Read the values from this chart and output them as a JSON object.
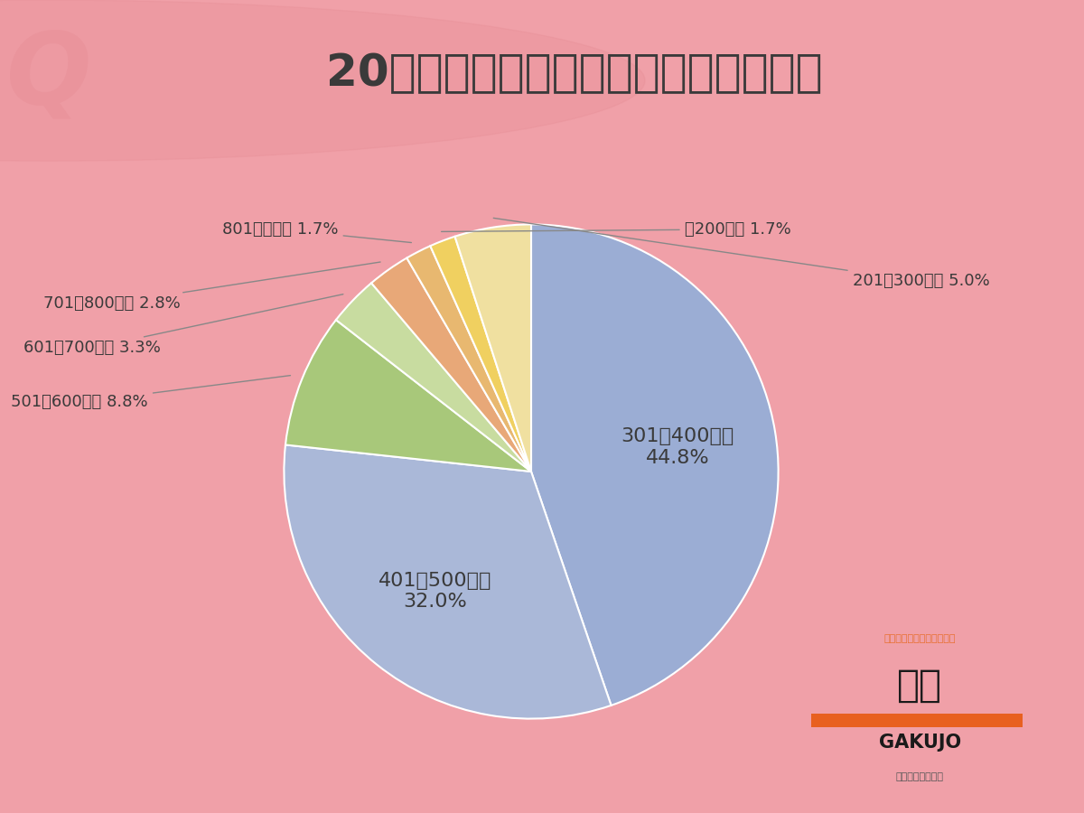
{
  "title": "20代の年収として、理想だと思う年収",
  "title_fontsize": 36,
  "title_color": "#3a3a3a",
  "background_outer": "#f0a0a8",
  "background_inner": "#ffffff",
  "slices": [
    {
      "label": "301～400万円",
      "value": 44.8,
      "color": "#9badd4",
      "label_inside": true
    },
    {
      "label": "401～500万円",
      "value": 32.0,
      "color": "#aab8d8",
      "label_inside": true
    },
    {
      "label": "501～600万円",
      "value": 8.8,
      "color": "#a8c87a",
      "label_inside": false
    },
    {
      "label": "601～700万円",
      "value": 3.3,
      "color": "#c8dca0",
      "label_inside": false
    },
    {
      "label": "701～800万円",
      "value": 2.8,
      "color": "#e8a878",
      "label_inside": false
    },
    {
      "label": "801万円以上",
      "value": 1.7,
      "color": "#e8b870",
      "label_inside": false
    },
    {
      "label": "～200万円",
      "value": 1.7,
      "color": "#f0d060",
      "label_inside": false
    },
    {
      "label": "201～300万円",
      "value": 5.0,
      "color": "#f0e0a0",
      "label_inside": false
    }
  ],
  "start_angle": 90,
  "logo_text_top": "つくるのは、未来の選択肢",
  "logo_text_main": "学情",
  "logo_text_sub": "GAKUJO",
  "logo_text_bottom": "東証プライム上場"
}
